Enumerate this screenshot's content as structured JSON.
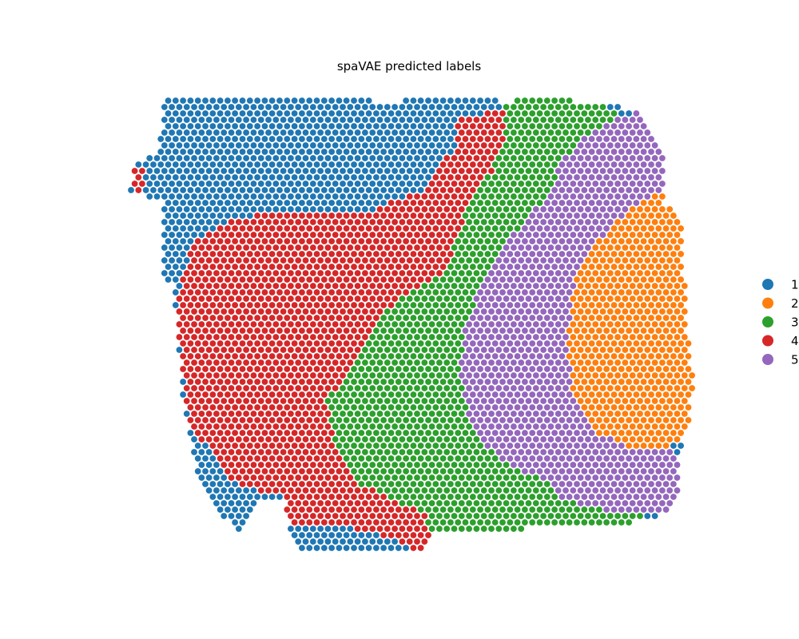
{
  "chart_data": {
    "type": "scatter",
    "title": "spaVAE predicted labels",
    "xlabel": "",
    "ylabel": "",
    "axes_visible": false,
    "grid": false,
    "legend_position": "right",
    "marker": "filled circle",
    "point_layout": "hexagonal spot array",
    "series": [
      {
        "label": "1",
        "color": "#1f77b4"
      },
      {
        "label": "2",
        "color": "#ff7f0e"
      },
      {
        "label": "3",
        "color": "#2ca02c"
      },
      {
        "label": "4",
        "color": "#d62728"
      },
      {
        "label": "5",
        "color": "#9467bd"
      }
    ]
  }
}
